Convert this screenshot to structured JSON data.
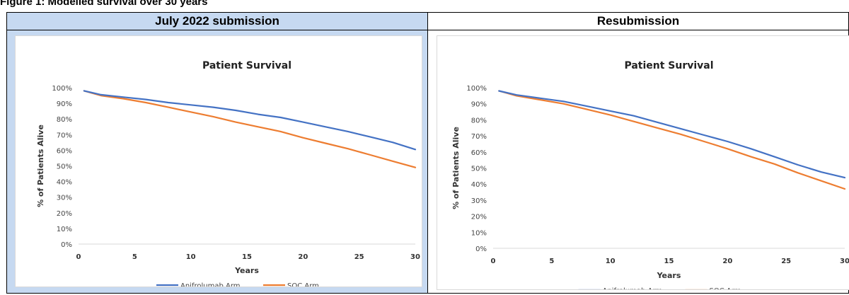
{
  "figure": {
    "caption": "Figure 1: Modelled survival over 30 years"
  },
  "panels": [
    {
      "header": "July 2022 submission"
    },
    {
      "header": "Resubmission"
    }
  ],
  "chart_data": [
    {
      "type": "line",
      "title": "Patient Survival",
      "xlabel": "Years",
      "ylabel": "% of Patients Alive",
      "xlim": [
        0,
        30
      ],
      "ylim": [
        0,
        100
      ],
      "x_ticks": [
        "0",
        "5",
        "10",
        "15",
        "20",
        "25",
        "30"
      ],
      "y_ticks": [
        "0%",
        "10%",
        "20%",
        "30%",
        "40%",
        "50%",
        "60%",
        "70%",
        "80%",
        "90%",
        "100%"
      ],
      "legend": "bottom",
      "series": [
        {
          "name": "Anifrolumab Arm",
          "color": "#4472c4",
          "x": [
            0.5,
            2,
            4,
            6,
            8,
            10,
            12,
            14,
            16,
            18,
            20,
            22,
            24,
            26,
            28,
            30
          ],
          "y": [
            98,
            95.5,
            94,
            92.5,
            90.5,
            89,
            87.5,
            85.5,
            83,
            81,
            78,
            75,
            72,
            68.5,
            65,
            60.5
          ]
        },
        {
          "name": "SOC Arm",
          "color": "#ed7d31",
          "x": [
            0.5,
            2,
            4,
            6,
            8,
            10,
            12,
            14,
            16,
            18,
            20,
            22,
            24,
            26,
            28,
            30
          ],
          "y": [
            98,
            95,
            93,
            90.5,
            87.5,
            84.5,
            81.5,
            78,
            75,
            72,
            68,
            64.5,
            61,
            57,
            53,
            49
          ]
        }
      ]
    },
    {
      "type": "line",
      "title": "Patient Survival",
      "xlabel": "Years",
      "ylabel": "% of Patients Alive",
      "xlim": [
        0,
        30
      ],
      "ylim": [
        0,
        100
      ],
      "x_ticks": [
        "0",
        "5",
        "10",
        "15",
        "20",
        "25",
        "30"
      ],
      "y_ticks": [
        "0%",
        "10%",
        "20%",
        "30%",
        "40%",
        "50%",
        "60%",
        "70%",
        "80%",
        "90%",
        "100%"
      ],
      "legend": "bottom",
      "series": [
        {
          "name": "Anifrolumab Arm",
          "color": "#4472c4",
          "x": [
            0.5,
            2,
            4,
            6,
            8,
            10,
            12,
            14,
            16,
            18,
            20,
            22,
            24,
            26,
            28,
            30
          ],
          "y": [
            98,
            95.5,
            93.5,
            91.5,
            88.5,
            85.5,
            82.5,
            78.5,
            74.5,
            70.5,
            66.5,
            62,
            57,
            52,
            47.5,
            44
          ]
        },
        {
          "name": "SOC Arm",
          "color": "#ed7d31",
          "x": [
            0.5,
            2,
            4,
            6,
            8,
            10,
            12,
            14,
            16,
            18,
            20,
            22,
            24,
            26,
            28,
            30
          ],
          "y": [
            98,
            95,
            92.5,
            90,
            86.5,
            83,
            79,
            75,
            71,
            66.5,
            62,
            57,
            52.5,
            47,
            42,
            37
          ]
        }
      ]
    }
  ]
}
